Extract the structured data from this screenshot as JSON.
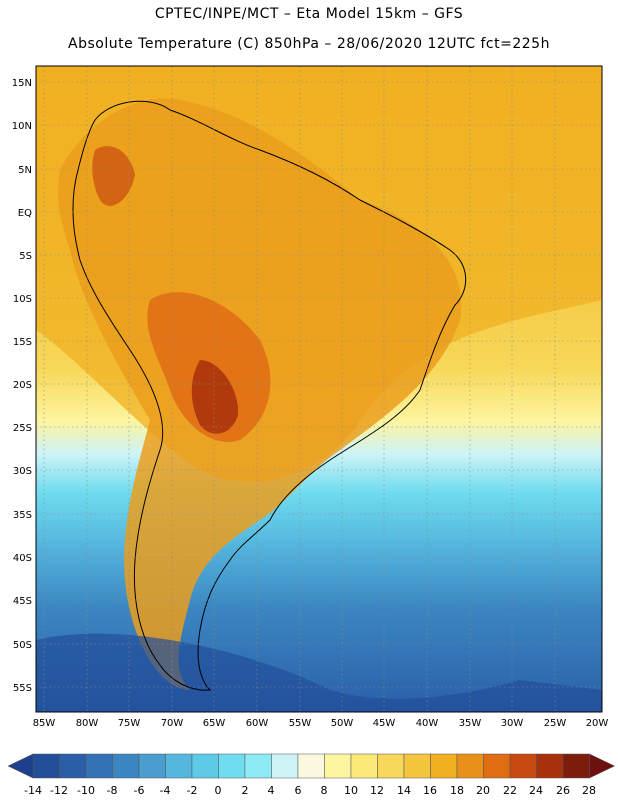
{
  "header": {
    "line1": "CPTEC/INPE/MCT –  Eta Model 15km – GFS",
    "line2": "Absolute Temperature (C) 850hPa – 28/06/2020 12UTC fct=225h"
  },
  "map": {
    "lat_labels": [
      "15N",
      "10N",
      "5N",
      "EQ",
      "5S",
      "10S",
      "15S",
      "20S",
      "25S",
      "30S",
      "35S",
      "40S",
      "45S",
      "50S",
      "55S"
    ],
    "lon_labels": [
      "85W",
      "80W",
      "75W",
      "70W",
      "65W",
      "60W",
      "55W",
      "50W",
      "45W",
      "40W",
      "35W",
      "30W",
      "25W",
      "20W"
    ]
  },
  "colorbar": {
    "labels": [
      "-14",
      "-12",
      "-10",
      "-8",
      "-6",
      "-4",
      "-2",
      "0",
      "2",
      "4",
      "6",
      "8",
      "10",
      "12",
      "14",
      "16",
      "18",
      "20",
      "22",
      "24",
      "26",
      "28"
    ],
    "colors": [
      "#1d3f8c",
      "#224e9a",
      "#2a5fa8",
      "#3372b5",
      "#3b86c1",
      "#4a9dcf",
      "#55b6de",
      "#5dcbe8",
      "#6fdcef",
      "#8eeaf4",
      "#cdf3f7",
      "#fdf8e0",
      "#fdf5a0",
      "#fbe97a",
      "#f7d85a",
      "#f4c53d",
      "#f0b021",
      "#e8901a",
      "#e06c14",
      "#c94a10",
      "#a8300c",
      "#7d1c0a",
      "#6d1010"
    ]
  }
}
